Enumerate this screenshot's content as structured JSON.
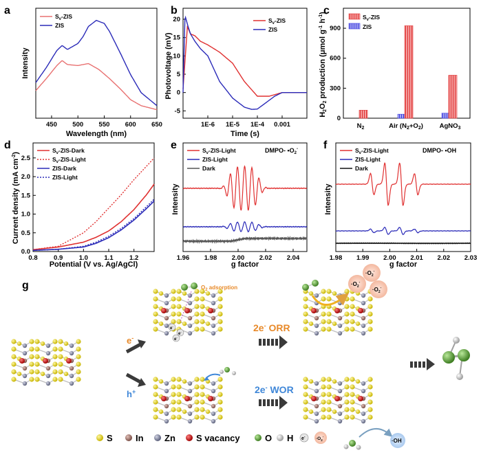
{
  "panel_labels": [
    "a",
    "b",
    "c",
    "d",
    "e",
    "f",
    "g"
  ],
  "panel_a": {
    "xlabel": "Wavelength (nm)",
    "ylabel": "Intensity",
    "xticks": [
      "450",
      "500",
      "550",
      "600",
      "650"
    ],
    "legend": [
      "Sv-ZIS",
      "ZIS"
    ]
  },
  "panel_b": {
    "xlabel": "Time (s)",
    "ylabel": "Photovoltage (mV)",
    "xticks": [
      "1E-6",
      "1E-5",
      "1E-4",
      "0.001"
    ],
    "yticks": [
      "-5",
      "0",
      "5",
      "10",
      "15",
      "20"
    ],
    "legend": [
      "Sv-ZIS",
      "ZIS"
    ]
  },
  "panel_c": {
    "ylabel": "H2O2 production (μmol g-1 h-1)",
    "categories": [
      "N2",
      "Air (N2+O2)",
      "AgNO3"
    ],
    "yticks": [
      "0",
      "300",
      "600",
      "900"
    ],
    "legend": [
      "Sv-ZIS",
      "ZIS"
    ]
  },
  "panel_d": {
    "xlabel": "Potential (V vs. Ag/AgCl)",
    "ylabel": "Current density (mA cm-2)",
    "xticks": [
      "0.8",
      "0.9",
      "1.0",
      "1.1",
      "1.2"
    ],
    "yticks": [
      "0.0",
      "0.5",
      "1.0",
      "1.5",
      "2.0",
      "2.5"
    ],
    "legend": [
      "Sv-ZIS-Dark",
      "Sv-ZIS-Light",
      "ZIS-Dark",
      "ZIS-Light"
    ]
  },
  "panel_e": {
    "xlabel": "g factor",
    "ylabel": "Intensity",
    "annotation": "DMPO- •O2-",
    "xticks": [
      "1.96",
      "1.98",
      "2.00",
      "2.02",
      "2.04"
    ],
    "legend": [
      "Sv-ZIS-Light",
      "ZIS-Light",
      "Dark"
    ]
  },
  "panel_f": {
    "xlabel": "g factor",
    "ylabel": "Intensity",
    "annotation": "DMPO- •OH",
    "xticks": [
      "1.98",
      "1.99",
      "2.00",
      "2.01",
      "2.02",
      "2.03"
    ],
    "legend": [
      "Sv-ZIS-Light",
      "ZIS-Light",
      "Dark"
    ]
  },
  "scheme": {
    "o2_adsorption": "O2 adsorption",
    "e_minus": "e-",
    "h_plus": "h+",
    "orr": "2e- ORR",
    "wor": "2e- WOR",
    "superoxide": "·O2-",
    "hydroxyl": "·OH",
    "legend": [
      "S",
      "In",
      "Zn",
      "S vacancy",
      "O",
      "H",
      "e-",
      "·O2-"
    ]
  },
  "colors": {
    "sv": "#e03030",
    "zis": "#2a2ab8",
    "dark": "#333333",
    "s_atom": "#e8d81e",
    "in_atom": "#b08078",
    "zn_atom": "#8a8fa8",
    "vac": "#d01818",
    "o_atom": "#5fa83a",
    "h_atom": "#d8d8d8"
  },
  "chart_data": [
    {
      "panel": "a",
      "type": "line",
      "xlabel": "Wavelength (nm)",
      "ylabel": "Intensity",
      "xlim": [
        420,
        650
      ],
      "series": [
        {
          "name": "Sv-ZIS",
          "x": [
            420,
            440,
            460,
            470,
            480,
            500,
            520,
            540,
            560,
            580,
            600,
            620,
            650
          ],
          "y": [
            0.22,
            0.34,
            0.47,
            0.52,
            0.48,
            0.47,
            0.49,
            0.43,
            0.34,
            0.24,
            0.13,
            0.07,
            0.03
          ]
        },
        {
          "name": "ZIS",
          "x": [
            420,
            440,
            460,
            470,
            480,
            500,
            510,
            520,
            535,
            550,
            560,
            580,
            600,
            620,
            650
          ],
          "y": [
            0.3,
            0.45,
            0.62,
            0.67,
            0.63,
            0.69,
            0.76,
            0.86,
            0.92,
            0.89,
            0.81,
            0.6,
            0.38,
            0.2,
            0.07
          ]
        }
      ]
    },
    {
      "panel": "b",
      "type": "line",
      "xlabel": "Time (s)",
      "ylabel": "Photovoltage (mV)",
      "xscale": "log",
      "xlim": [
        1e-07,
        0.01
      ],
      "ylim": [
        -7,
        23
      ],
      "series": [
        {
          "name": "Sv-ZIS",
          "x": [
            1e-07,
            1.5e-07,
            2e-07,
            3e-07,
            5e-07,
            1e-06,
            3e-06,
            1e-05,
            3e-05,
            0.0001,
            0.0003,
            0.001,
            0.003,
            0.01
          ],
          "y": [
            1,
            18,
            16,
            15.5,
            14,
            13,
            11,
            8,
            3,
            -1,
            -1,
            0,
            0,
            0
          ]
        },
        {
          "name": "ZIS",
          "x": [
            1e-07,
            1.2e-07,
            1.6e-07,
            2e-07,
            3e-07,
            5e-07,
            1e-06,
            3e-06,
            1e-05,
            3e-05,
            6e-05,
            0.0001,
            0.0002,
            0.0005,
            0.001,
            0.003,
            0.01
          ],
          "y": [
            0,
            21,
            18,
            16,
            14,
            12,
            10,
            3,
            -1.5,
            -4,
            -4.6,
            -4.5,
            -3,
            -1,
            0,
            0,
            0
          ]
        }
      ]
    },
    {
      "panel": "c",
      "type": "bar",
      "ylabel": "H2O2 production (μmol g-1 h-1)",
      "ylim": [
        0,
        1100
      ],
      "categories": [
        "N2",
        "Air (N2+O2)",
        "AgNO3"
      ],
      "series": [
        {
          "name": "Sv-ZIS",
          "values": [
            80,
            925,
            430
          ]
        },
        {
          "name": "ZIS",
          "values": [
            0,
            40,
            50
          ]
        }
      ]
    },
    {
      "panel": "d",
      "type": "line",
      "xlabel": "Potential (V vs. Ag/AgCl)",
      "ylabel": "Current density (mA cm-2)",
      "xlim": [
        0.8,
        1.28
      ],
      "ylim": [
        0,
        2.9
      ],
      "series": [
        {
          "name": "Sv-ZIS-Dark",
          "x": [
            0.8,
            0.9,
            1.0,
            1.05,
            1.1,
            1.15,
            1.2,
            1.25,
            1.28
          ],
          "y": [
            0.05,
            0.12,
            0.25,
            0.38,
            0.55,
            0.8,
            1.12,
            1.52,
            1.8
          ]
        },
        {
          "name": "Sv-ZIS-Light",
          "x": [
            0.8,
            0.9,
            1.0,
            1.05,
            1.1,
            1.15,
            1.2,
            1.25,
            1.28
          ],
          "y": [
            0.05,
            0.14,
            0.5,
            0.8,
            1.16,
            1.52,
            1.92,
            2.28,
            2.5
          ]
        },
        {
          "name": "ZIS-Dark",
          "x": [
            0.8,
            0.9,
            1.0,
            1.05,
            1.1,
            1.15,
            1.2,
            1.25,
            1.28
          ],
          "y": [
            0.03,
            0.06,
            0.12,
            0.22,
            0.37,
            0.58,
            0.84,
            1.15,
            1.35
          ]
        },
        {
          "name": "ZIS-Light",
          "x": [
            0.8,
            0.9,
            1.0,
            1.05,
            1.1,
            1.15,
            1.2,
            1.25,
            1.28
          ],
          "y": [
            0.03,
            0.06,
            0.14,
            0.25,
            0.41,
            0.62,
            0.88,
            1.2,
            1.4
          ]
        }
      ]
    },
    {
      "panel": "e",
      "type": "line",
      "xlabel": "g factor",
      "ylabel": "Intensity",
      "xlim": [
        1.96,
        2.05
      ]
    },
    {
      "panel": "f",
      "type": "line",
      "xlabel": "g factor",
      "ylabel": "Intensity",
      "xlim": [
        1.98,
        2.03
      ]
    }
  ]
}
